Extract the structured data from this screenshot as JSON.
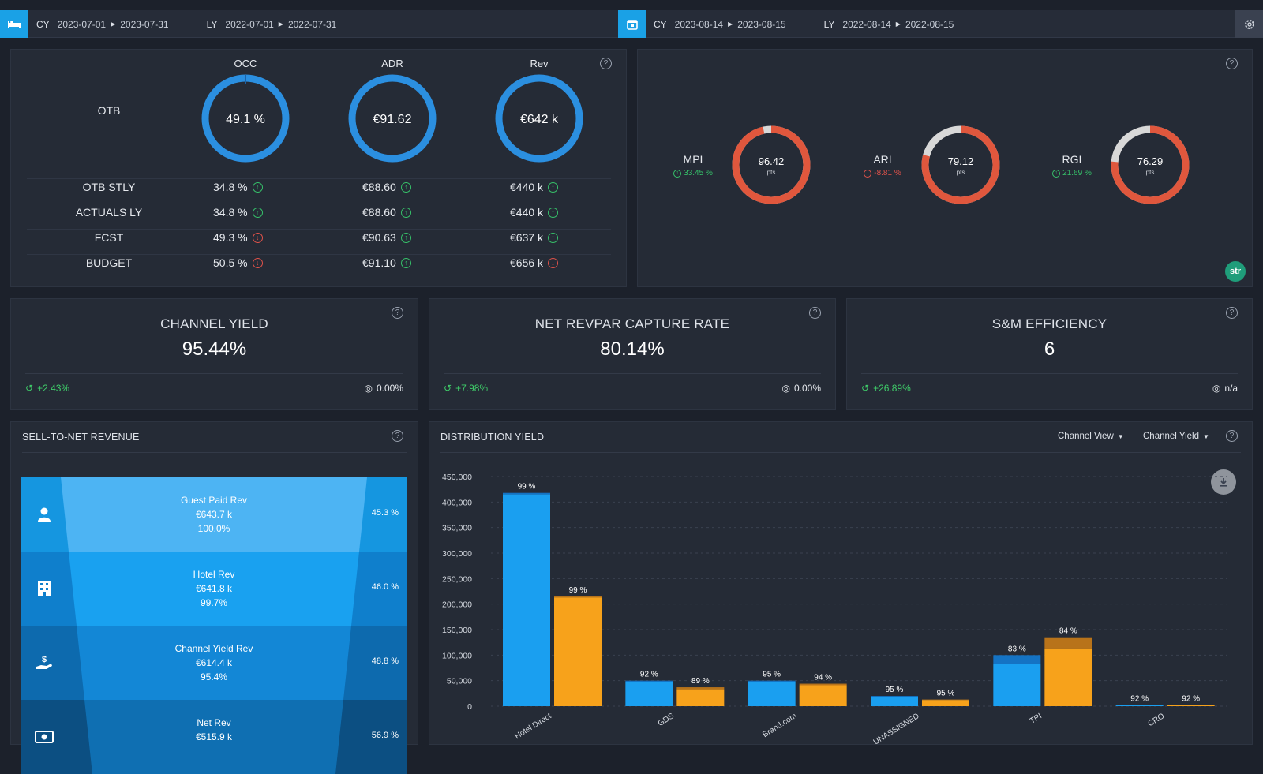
{
  "topbar": {
    "left": {
      "cy_tag": "CY",
      "cy_from": "2023-07-01",
      "cy_to": "2023-07-31",
      "ly_tag": "LY",
      "ly_from": "2022-07-01",
      "ly_to": "2022-07-31",
      "icon": "bed-icon"
    },
    "right": {
      "cy_tag": "CY",
      "cy_from": "2023-08-14",
      "cy_to": "2023-08-15",
      "ly_tag": "LY",
      "ly_from": "2022-08-14",
      "ly_to": "2022-08-15",
      "icon": "calendar-icon"
    },
    "settings_icon": "gear-icon"
  },
  "kpi": {
    "help": "?",
    "otb_label": "OTB",
    "columns": [
      {
        "head": "OCC",
        "value": "49.1 %",
        "fill": 1.0
      },
      {
        "head": "ADR",
        "value": "€91.62",
        "fill": 1.0
      },
      {
        "head": "Rev",
        "value": "€642 k",
        "fill": 1.0
      }
    ],
    "rows": [
      {
        "label": "OTB STLY",
        "values": [
          {
            "v": "34.8 %",
            "dir": "up"
          },
          {
            "v": "€88.60",
            "dir": "up"
          },
          {
            "v": "€440 k",
            "dir": "up"
          }
        ]
      },
      {
        "label": "ACTUALS LY",
        "values": [
          {
            "v": "34.8 %",
            "dir": "up"
          },
          {
            "v": "€88.60",
            "dir": "up"
          },
          {
            "v": "€440 k",
            "dir": "up"
          }
        ]
      },
      {
        "label": "FCST",
        "values": [
          {
            "v": "49.3 %",
            "dir": "down"
          },
          {
            "v": "€90.63",
            "dir": "up"
          },
          {
            "v": "€637 k",
            "dir": "up"
          }
        ]
      },
      {
        "label": "BUDGET",
        "values": [
          {
            "v": "50.5 %",
            "dir": "down"
          },
          {
            "v": "€91.10",
            "dir": "up"
          },
          {
            "v": "€656 k",
            "dir": "down"
          }
        ]
      }
    ],
    "colors": {
      "donut": "#2b8fe0",
      "up": "#36c26a",
      "down": "#e0524a"
    }
  },
  "indexes": {
    "help": "?",
    "badge": "str",
    "items": [
      {
        "label": "MPI",
        "value": "96.42",
        "unit": "pts",
        "change": "33.45 %",
        "dir": "up",
        "fill": 0.964
      },
      {
        "label": "ARI",
        "value": "79.12",
        "unit": "pts",
        "change": "-8.81 %",
        "dir": "down",
        "fill": 0.791
      },
      {
        "label": "RGI",
        "value": "76.29",
        "unit": "pts",
        "change": "21.69 %",
        "dir": "up",
        "fill": 0.763
      }
    ],
    "colors": {
      "ring": "#e0573d",
      "rest": "#d8d8d8"
    }
  },
  "cards": [
    {
      "title": "CHANNEL YIELD",
      "value": "95.44%",
      "left": "+2.43%",
      "right": "0.00%",
      "help": "?"
    },
    {
      "title": "NET REVPAR CAPTURE RATE",
      "value": "80.14%",
      "left": "+7.98%",
      "right": "0.00%",
      "help": "?"
    },
    {
      "title": "S&M EFFICIENCY",
      "value": "6",
      "left": "+26.89%",
      "right": "n/a",
      "help": "?"
    }
  ],
  "sell_to_net": {
    "title": "SELL-TO-NET REVENUE",
    "help": "?",
    "rows": [
      {
        "name": "Guest Paid Rev",
        "amount": "€643.7 k",
        "pct": "100.0%",
        "side": "45.3 %",
        "icon": "user-icon"
      },
      {
        "name": "Hotel Rev",
        "amount": "€641.8 k",
        "pct": "99.7%",
        "side": "46.0 %",
        "icon": "building-icon"
      },
      {
        "name": "Channel Yield Rev",
        "amount": "€614.4 k",
        "pct": "95.4%",
        "side": "48.8 %",
        "icon": "hand-money-icon"
      },
      {
        "name": "Net Rev",
        "amount": "€515.9 k",
        "pct": "",
        "side": "56.9 %",
        "icon": "cash-icon"
      }
    ]
  },
  "distribution": {
    "title": "DISTRIBUTION YIELD",
    "help": "?",
    "view_dropdown": "Channel View",
    "metric_dropdown": "Channel Yield",
    "download_icon": "download-icon"
  },
  "chart_data": {
    "type": "bar",
    "categories": [
      "Hotel Direct",
      "GDS",
      "Brand.com",
      "UNASSIGNED",
      "TPI",
      "CRO"
    ],
    "series": [
      {
        "values": [
          418000,
          50000,
          50000,
          20000,
          100000,
          2000
        ],
        "yield": [
          415000,
          47000,
          48000,
          18000,
          83000,
          1800
        ],
        "labels": [
          "99 %",
          "92 %",
          "95 %",
          "95 %",
          "83 %",
          "92 %"
        ],
        "color": "#1a9ff0",
        "cap": "#1473c4"
      },
      {
        "values": [
          215000,
          37000,
          44000,
          13000,
          135000,
          2000
        ],
        "yield": [
          213000,
          33000,
          41000,
          12000,
          113000,
          1800
        ],
        "labels": [
          "99 %",
          "89 %",
          "94 %",
          "95 %",
          "84 %",
          "92 %"
        ],
        "color": "#f7a21b",
        "cap": "#b8731a"
      }
    ],
    "yticks": [
      "450,000",
      "400,000",
      "350,000",
      "300,000",
      "250,000",
      "200,000",
      "150,000",
      "100,000",
      "50,000",
      "0"
    ],
    "ylim": [
      0,
      450000
    ],
    "grid": true
  }
}
